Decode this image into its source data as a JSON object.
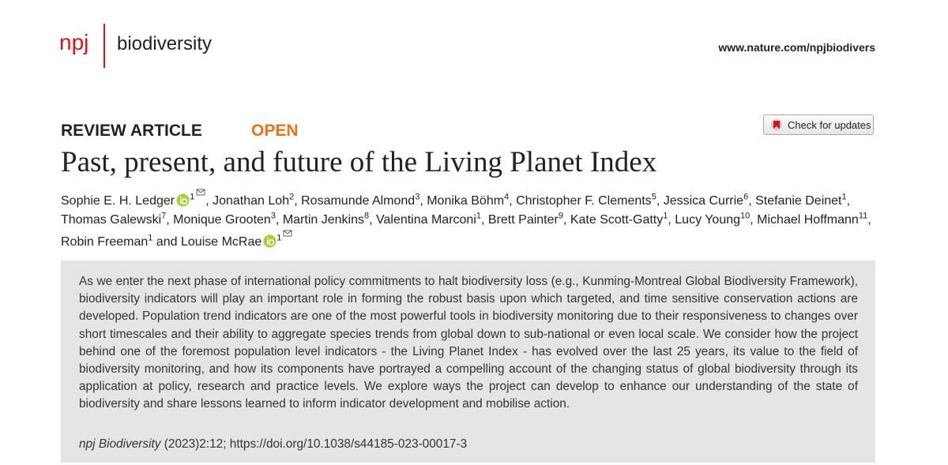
{
  "header": {
    "journal_abbr": "npj",
    "journal_name": "biodiversity",
    "url": "www.nature.com/npjbiodivers"
  },
  "check_updates": "Check for updates",
  "article_type": "REVIEW ARTICLE",
  "access": "OPEN",
  "title": "Past, present, and future of the Living Planet Index",
  "authors": [
    {
      "name": "Sophie E. H. Ledger",
      "affil": "1",
      "orcid": true,
      "email": true,
      "sep": ", "
    },
    {
      "name": "Jonathan Loh",
      "affil": "2",
      "sep": ", "
    },
    {
      "name": "Rosamunde Almond",
      "affil": "3",
      "sep": ", "
    },
    {
      "name": "Monika Böhm",
      "affil": "4",
      "sep": ", "
    },
    {
      "name": "Christopher F. Clements",
      "affil": "5",
      "sep": ", "
    },
    {
      "name": "Jessica Currie",
      "affil": "6",
      "sep": ", "
    },
    {
      "name": "Stefanie Deinet",
      "affil": "1",
      "sep": ", "
    },
    {
      "name": "Thomas Galewski",
      "affil": "7",
      "sep": ", "
    },
    {
      "name": "Monique Grooten",
      "affil": "3",
      "sep": ", "
    },
    {
      "name": "Martin Jenkins",
      "affil": "8",
      "sep": ", "
    },
    {
      "name": "Valentina Marconi",
      "affil": "1",
      "sep": ", "
    },
    {
      "name": "Brett Painter",
      "affil": "9",
      "sep": ", "
    },
    {
      "name": "Kate Scott-Gatty",
      "affil": "1",
      "sep": ", "
    },
    {
      "name": "Lucy Young",
      "affil": "10",
      "sep": ", "
    },
    {
      "name": "Michael Hoffmann",
      "affil": "11",
      "sep": ", "
    },
    {
      "name": "Robin Freeman",
      "affil": "1",
      "sep": " and "
    },
    {
      "name": "Louise McRae",
      "affil": "1",
      "orcid": true,
      "email": true
    }
  ],
  "abstract": "As we enter the next phase of international policy commitments to halt biodiversity loss (e.g., Kunming-Montreal Global Biodiversity Framework), biodiversity indicators will play an important role in forming the robust basis upon which targeted, and time sensitive conservation actions are developed. Population trend indicators are one of the most powerful tools in biodiversity monitoring due to their responsiveness to changes over short timescales and their ability to aggregate species trends from global down to sub-national or even local scale. We consider how the project behind one of the foremost population level indicators - the Living Planet Index - has evolved over the last 25 years, its value to the field of biodiversity monitoring, and how its components have portrayed a compelling account of the changing status of global biodiversity through its application at policy, research and practice levels. We explore ways the project can develop to enhance our understanding of the state of biodiversity and share lessons learned to inform indicator development and mobilise action.",
  "citation": {
    "journal": "npj Biodiversity",
    "details": " (2023)2:12; https://doi.org/10.1038/s44185-023-00017-3"
  }
}
